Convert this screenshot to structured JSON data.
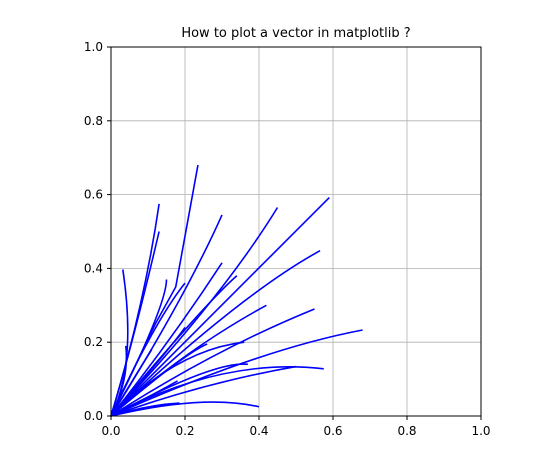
{
  "chart_data": {
    "type": "line",
    "title": "How to plot a vector in matplotlib ?",
    "xlabel": "",
    "ylabel": "",
    "xlim": [
      0.0,
      1.0
    ],
    "ylim": [
      0.0,
      1.0
    ],
    "grid": true,
    "line_color": "#0000ff",
    "x_ticks": [
      "0.0",
      "0.2",
      "0.4",
      "0.6",
      "0.8",
      "1.0"
    ],
    "y_ticks": [
      "0.0",
      "0.2",
      "0.4",
      "0.6",
      "0.8",
      "1.0"
    ],
    "tick_values": [
      0.0,
      0.2,
      0.4,
      0.6,
      0.8,
      1.0
    ],
    "series": [
      {
        "points": [
          [
            0,
            0
          ],
          [
            0.12,
            0.25
          ],
          [
            0.175,
            0.35
          ],
          [
            0.235,
            0.68
          ]
        ]
      },
      {
        "points": [
          [
            0,
            0
          ],
          [
            0.2,
            0.32
          ],
          [
            0.3,
            0.545
          ]
        ]
      },
      {
        "points": [
          [
            0,
            0
          ],
          [
            0.3,
            0.32
          ],
          [
            0.45,
            0.565
          ]
        ]
      },
      {
        "points": [
          [
            0,
            0
          ],
          [
            0.35,
            0.35
          ],
          [
            0.59,
            0.592
          ]
        ]
      },
      {
        "points": [
          [
            0,
            0
          ],
          [
            0.35,
            0.33
          ],
          [
            0.565,
            0.448
          ]
        ]
      },
      {
        "points": [
          [
            0,
            0
          ],
          [
            0.2,
            0.18
          ],
          [
            0.42,
            0.3
          ]
        ]
      },
      {
        "points": [
          [
            0,
            0
          ],
          [
            0.28,
            0.18
          ],
          [
            0.55,
            0.29
          ]
        ]
      },
      {
        "points": [
          [
            0,
            0
          ],
          [
            0.4,
            0.18
          ],
          [
            0.68,
            0.233
          ]
        ]
      },
      {
        "points": [
          [
            0,
            0
          ],
          [
            0.3,
            0.16
          ],
          [
            0.575,
            0.128
          ]
        ]
      },
      {
        "points": [
          [
            0,
            0
          ],
          [
            0.25,
            0.09
          ],
          [
            0.5,
            0.134
          ]
        ]
      },
      {
        "points": [
          [
            0,
            0
          ],
          [
            0.25,
            0.06
          ],
          [
            0.4,
            0.025
          ]
        ]
      },
      {
        "points": [
          [
            0,
            0
          ],
          [
            0.1,
            0.03
          ],
          [
            0.185,
            0.035
          ]
        ]
      },
      {
        "points": [
          [
            0,
            0
          ],
          [
            0.06,
            0.1
          ],
          [
            0.11,
            0.18
          ]
        ]
      },
      {
        "points": [
          [
            0,
            0
          ],
          [
            0.07,
            0.14
          ],
          [
            0.032,
            0.397
          ]
        ]
      },
      {
        "points": [
          [
            0,
            0
          ],
          [
            0.09,
            0.3
          ],
          [
            0.13,
            0.575
          ]
        ]
      },
      {
        "points": [
          [
            0,
            0
          ],
          [
            0.06,
            0.2
          ],
          [
            0.13,
            0.5
          ]
        ]
      },
      {
        "points": [
          [
            0,
            0
          ],
          [
            0.05,
            0.1
          ],
          [
            0.04,
            0.19
          ]
        ]
      },
      {
        "points": [
          [
            0,
            0
          ],
          [
            0.12,
            0.26
          ],
          [
            0.2,
            0.36
          ]
        ]
      },
      {
        "points": [
          [
            0,
            0
          ],
          [
            0.2,
            0.17
          ],
          [
            0.26,
            0.195
          ]
        ]
      },
      {
        "points": [
          [
            0,
            0
          ],
          [
            0.16,
            0.2
          ],
          [
            0.3,
            0.415
          ]
        ]
      },
      {
        "points": [
          [
            0,
            0
          ],
          [
            0.1,
            0.05
          ],
          [
            0.18,
            0.095
          ]
        ]
      },
      {
        "points": [
          [
            0,
            0
          ],
          [
            0.15,
            0.17
          ],
          [
            0.2,
            0.24
          ]
        ]
      },
      {
        "points": [
          [
            0,
            0
          ],
          [
            0.25,
            0.3
          ],
          [
            0.34,
            0.38
          ]
        ]
      },
      {
        "points": [
          [
            0,
            0
          ],
          [
            0.15,
            0.3
          ],
          [
            0.15,
            0.37
          ]
        ]
      },
      {
        "points": [
          [
            0,
            0
          ],
          [
            0.28,
            0.15
          ],
          [
            0.37,
            0.14
          ]
        ]
      },
      {
        "points": [
          [
            0,
            0
          ],
          [
            0.18,
            0.18
          ],
          [
            0.36,
            0.2
          ]
        ]
      }
    ]
  }
}
